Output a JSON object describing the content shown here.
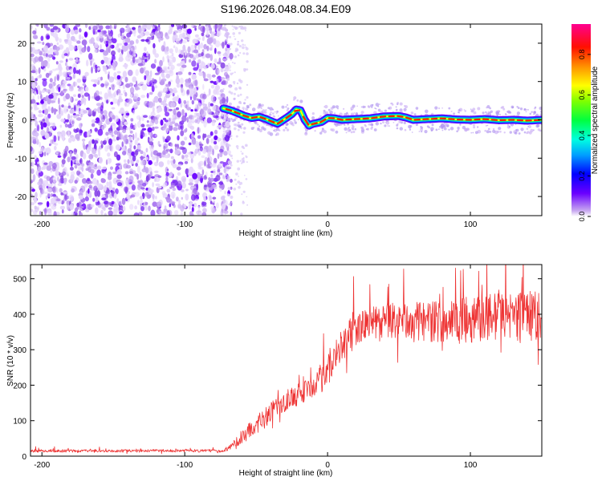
{
  "title": "S196.2026.048.08.34.E09",
  "chart_data": [
    {
      "type": "heatmap",
      "xlabel": "Height of straight line (km)",
      "ylabel": "Frequency (Hz)",
      "xlim": [
        -208,
        150
      ],
      "ylim": [
        -25,
        25
      ],
      "xticks": [
        -200,
        -100,
        0,
        100
      ],
      "xtick_labels": [
        "-200",
        "-100",
        "0",
        "100"
      ],
      "yticks": [
        -20,
        -10,
        0,
        10,
        20
      ],
      "ytick_labels": [
        "-20",
        "-10",
        "0",
        "10",
        "20"
      ],
      "noise_region_x": [
        -208,
        -73
      ],
      "ridge": {
        "x": [
          -73,
          -68,
          -63,
          -58,
          -53,
          -48,
          -43,
          -38,
          -35,
          -30,
          -25,
          -22,
          -19,
          -16,
          -13,
          -10,
          -7,
          -4,
          0,
          5,
          10,
          20,
          30,
          40,
          50,
          55,
          60,
          70,
          80,
          90,
          100,
          110,
          120,
          130,
          140,
          150
        ],
        "y": [
          3,
          2.5,
          1.8,
          1.0,
          0.5,
          0.8,
          0.2,
          -0.6,
          -1.0,
          0.2,
          1.5,
          2.7,
          2.5,
          0.0,
          -1.5,
          -1.0,
          -0.8,
          -0.5,
          0.5,
          0.4,
          0.0,
          0.2,
          0.4,
          0.9,
          1.0,
          0.6,
          0.0,
          0.2,
          0.4,
          0.1,
          0.0,
          0.2,
          -0.1,
          0.0,
          -0.2,
          0.0
        ]
      },
      "colorbar": {
        "label": "Normalized spectral amplitude",
        "range": [
          0,
          0.95
        ],
        "ticks": [
          0.0,
          0.2,
          0.4,
          0.6,
          0.8
        ],
        "tick_labels": [
          "0.0",
          "0.2",
          "0.4",
          "0.6",
          "0.8"
        ]
      }
    },
    {
      "type": "line",
      "xlabel": "Height of straight line (km)",
      "ylabel": "SNR (10 * v/v)",
      "xlim": [
        -208,
        150
      ],
      "ylim": [
        0,
        540
      ],
      "xticks": [
        -200,
        -100,
        0,
        100
      ],
      "xtick_labels": [
        "-200",
        "-100",
        "0",
        "100"
      ],
      "yticks": [
        0,
        100,
        200,
        300,
        400,
        500
      ],
      "ytick_labels": [
        "0",
        "100",
        "200",
        "300",
        "400",
        "500"
      ],
      "color": "#ee3333",
      "series": [
        {
          "name": "SNR",
          "x": [
            -208,
            -100,
            -73,
            -65,
            -55,
            -45,
            -35,
            -25,
            -15,
            -8,
            0,
            10,
            18,
            30,
            45,
            60,
            80,
            100,
            120,
            150
          ],
          "base": [
            15,
            15,
            15,
            35,
            70,
            105,
            140,
            165,
            185,
            205,
            240,
            310,
            355,
            375,
            380,
            380,
            380,
            385,
            395,
            395
          ],
          "spread": [
            8,
            8,
            8,
            25,
            45,
            55,
            60,
            60,
            70,
            80,
            90,
            90,
            90,
            90,
            100,
            110,
            120,
            130,
            140,
            140
          ]
        }
      ]
    }
  ]
}
